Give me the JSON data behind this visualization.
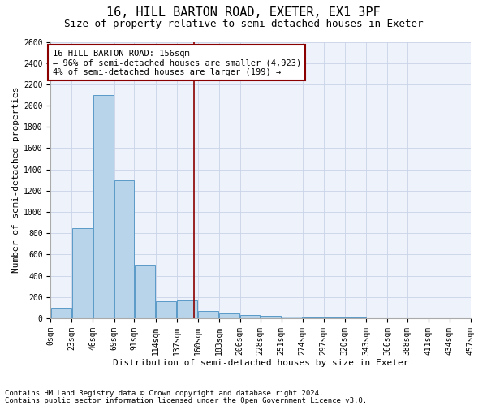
{
  "title": "16, HILL BARTON ROAD, EXETER, EX1 3PF",
  "subtitle": "Size of property relative to semi-detached houses in Exeter",
  "xlabel": "Distribution of semi-detached houses by size in Exeter",
  "ylabel": "Number of semi-detached properties",
  "footnote1": "Contains HM Land Registry data © Crown copyright and database right 2024.",
  "footnote2": "Contains public sector information licensed under the Open Government Licence v3.0.",
  "bar_color": "#b8d4ea",
  "bar_edge_color": "#5a9ac8",
  "vline_color": "#8b0000",
  "annotation_box_color": "#8b0000",
  "background_color": "#eef2fa",
  "grid_color": "#c8d4e8",
  "bin_labels": [
    "0sqm",
    "23sqm",
    "46sqm",
    "69sqm",
    "91sqm",
    "114sqm",
    "137sqm",
    "160sqm",
    "183sqm",
    "206sqm",
    "228sqm",
    "251sqm",
    "274sqm",
    "297sqm",
    "320sqm",
    "343sqm",
    "366sqm",
    "388sqm",
    "411sqm",
    "434sqm",
    "457sqm"
  ],
  "bar_heights": [
    100,
    850,
    2100,
    1300,
    500,
    160,
    165,
    65,
    45,
    30,
    20,
    15,
    10,
    8,
    5,
    3,
    2,
    1,
    0,
    0
  ],
  "vline_x": 156,
  "bin_edges": [
    0,
    23,
    46,
    69,
    91,
    114,
    137,
    160,
    183,
    206,
    228,
    251,
    274,
    297,
    320,
    343,
    366,
    388,
    411,
    434,
    457
  ],
  "ylim": [
    0,
    2600
  ],
  "yticks": [
    0,
    200,
    400,
    600,
    800,
    1000,
    1200,
    1400,
    1600,
    1800,
    2000,
    2200,
    2400,
    2600
  ],
  "annotation_title": "16 HILL BARTON ROAD: 156sqm",
  "annotation_line1": "← 96% of semi-detached houses are smaller (4,923)",
  "annotation_line2": "4% of semi-detached houses are larger (199) →",
  "title_fontsize": 11,
  "subtitle_fontsize": 9,
  "label_fontsize": 8,
  "tick_fontsize": 7,
  "annotation_fontsize": 7.5,
  "footnote_fontsize": 6.5
}
